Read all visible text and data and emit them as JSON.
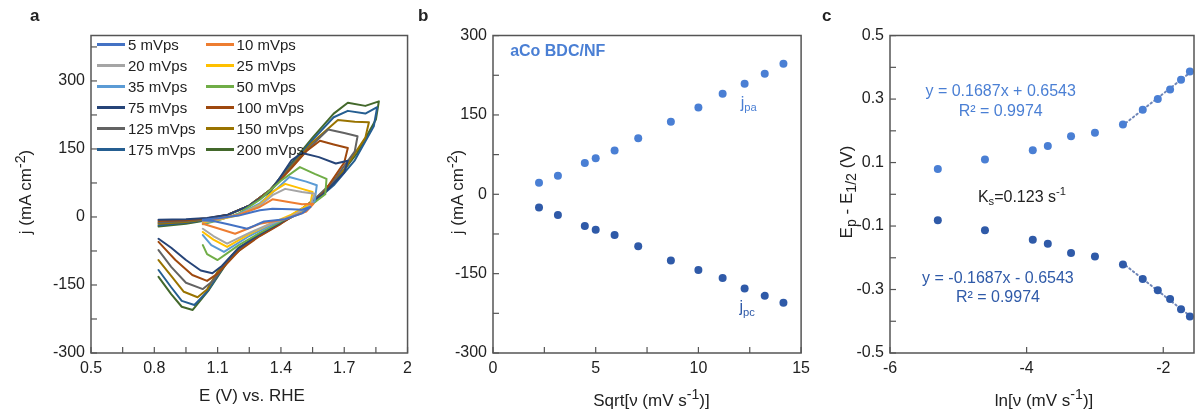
{
  "chart_data": [
    {
      "type": "line",
      "title": "a",
      "xlabel": "E (V) vs. RHE",
      "ylabel": "j (mA cm$^{-2}$)",
      "xlim": [
        0.5,
        2
      ],
      "ylim": [
        -300,
        400
      ],
      "xticks": [
        0.5,
        {
          "value": 0.65,
          "label": null
        },
        0.8,
        {
          "value": 0.95,
          "label": null
        },
        1.1,
        {
          "value": 1.25,
          "label": null
        },
        1.4,
        {
          "value": 1.55,
          "label": null
        },
        1.7,
        {
          "value": 1.85,
          "label": null
        },
        2
      ],
      "yticks": [
        -300,
        {
          "value": -225,
          "label": null
        },
        -150,
        {
          "value": -75,
          "label": null
        },
        0,
        {
          "value": 75,
          "label": null
        },
        150,
        {
          "value": 225,
          "label": null
        },
        300,
        {
          "value": 375,
          "label": null
        }
      ],
      "grid": false,
      "legend": "top left",
      "marker": "none",
      "line_style": "solid",
      "series": [
        {
          "name": "5 mVps",
          "color": "#4472c4",
          "x": [
            1.03,
            1.1,
            1.2,
            1.3,
            1.36,
            1.45,
            1.5,
            1.54,
            1.5,
            1.42,
            1.32,
            1.24,
            1.15,
            1.08,
            1.03
          ],
          "values": [
            -6,
            -3,
            3,
            15,
            18,
            17,
            16,
            22,
            8,
            -5,
            -10,
            -26,
            -16,
            -9,
            -7
          ]
        },
        {
          "name": "10 mVps",
          "color": "#ed7d31",
          "x": [
            1.03,
            1.1,
            1.2,
            1.3,
            1.36,
            1.45,
            1.5,
            1.554,
            1.52,
            1.42,
            1.3,
            1.183,
            1.1,
            1.03
          ],
          "values": [
            -8,
            -4,
            5,
            22,
            39,
            32,
            28,
            29,
            12,
            -5,
            -15,
            -37,
            -25,
            -15
          ]
        },
        {
          "name": "20 mVps",
          "color": "#a5a5a5",
          "x": [
            1.03,
            1.1,
            1.2,
            1.3,
            1.36,
            1.42,
            1.5,
            1.56,
            1.54,
            1.45,
            1.35,
            1.25,
            1.145,
            1.08,
            1.03
          ],
          "values": [
            -10,
            -5,
            5,
            25,
            48,
            62,
            55,
            51,
            25,
            2,
            -15,
            -35,
            -59,
            -42,
            -26
          ]
        },
        {
          "name": "25 mVps",
          "color": "#ffc000",
          "x": [
            1.03,
            1.1,
            1.2,
            1.3,
            1.36,
            1.42,
            1.5,
            1.55,
            1.54,
            1.45,
            1.35,
            1.25,
            1.145,
            1.08,
            1.03
          ],
          "values": [
            -12,
            -6,
            4,
            27,
            55,
            73,
            62,
            55,
            30,
            5,
            -15,
            -38,
            -66,
            -50,
            -33
          ]
        },
        {
          "name": "35 mVps",
          "color": "#5b9bd5",
          "x": [
            1.03,
            1.1,
            1.2,
            1.3,
            1.38,
            1.44,
            1.52,
            1.57,
            1.56,
            1.47,
            1.37,
            1.25,
            1.13,
            1.07,
            1.03
          ],
          "values": [
            -14,
            -7,
            6,
            30,
            62,
            88,
            78,
            70,
            35,
            8,
            -14,
            -42,
            -77,
            -62,
            -40
          ]
        },
        {
          "name": "50 mVps",
          "color": "#70ad47",
          "x": [
            1.03,
            1.1,
            1.2,
            1.3,
            1.4,
            1.49,
            1.56,
            1.616,
            1.61,
            1.52,
            1.42,
            1.3,
            1.2,
            1.1,
            1.05,
            1.03
          ],
          "values": [
            -16,
            -8,
            8,
            38,
            80,
            110,
            95,
            84,
            50,
            18,
            -5,
            -35,
            -62,
            -95,
            -82,
            -62
          ]
        },
        {
          "name": "75 mVps",
          "color": "#264478",
          "x": [
            0.82,
            0.95,
            1.05,
            1.15,
            1.25,
            1.35,
            1.45,
            1.5,
            1.58,
            1.66,
            1.717,
            1.7,
            1.6,
            1.5,
            1.4,
            1.3,
            1.2,
            1.12,
            1.075,
            1.02,
            0.95,
            0.88,
            0.82
          ],
          "values": [
            -6,
            -5,
            -2,
            5,
            25,
            55,
            125,
            141,
            132,
            118,
            124,
            98,
            50,
            18,
            -12,
            -38,
            -68,
            -108,
            -124,
            -118,
            -95,
            -68,
            -48
          ]
        },
        {
          "name": "100 mVps",
          "color": "#9e480e",
          "x": [
            0.82,
            0.95,
            1.05,
            1.15,
            1.25,
            1.35,
            1.45,
            1.52,
            1.585,
            1.65,
            1.717,
            1.7,
            1.6,
            1.5,
            1.4,
            1.3,
            1.2,
            1.1,
            1.05,
            0.98,
            0.9,
            0.82
          ],
          "values": [
            -9,
            -7,
            -3,
            5,
            25,
            58,
            108,
            145,
            168,
            160,
            152,
            120,
            52,
            15,
            -15,
            -42,
            -75,
            -125,
            -141,
            -128,
            -95,
            -55
          ]
        },
        {
          "name": "125 mVps",
          "color": "#636363",
          "x": [
            0.82,
            0.95,
            1.05,
            1.15,
            1.25,
            1.35,
            1.45,
            1.55,
            1.624,
            1.7,
            1.763,
            1.75,
            1.65,
            1.55,
            1.45,
            1.35,
            1.25,
            1.15,
            1.08,
            1.03,
            0.95,
            0.88,
            0.82
          ],
          "values": [
            -12,
            -9,
            -4,
            5,
            25,
            60,
            110,
            160,
            193,
            185,
            178,
            145,
            80,
            35,
            0,
            -28,
            -55,
            -95,
            -140,
            -159,
            -145,
            -110,
            -73
          ]
        },
        {
          "name": "150 mVps",
          "color": "#997300",
          "x": [
            0.82,
            0.95,
            1.05,
            1.15,
            1.25,
            1.35,
            1.45,
            1.55,
            1.67,
            1.75,
            1.817,
            1.8,
            1.7,
            1.6,
            1.5,
            1.4,
            1.3,
            1.2,
            1.1,
            1.05,
            1.005,
            0.94,
            0.88,
            0.82
          ],
          "values": [
            -15,
            -11,
            -5,
            5,
            25,
            60,
            112,
            165,
            214,
            210,
            209,
            175,
            105,
            55,
            18,
            -10,
            -38,
            -68,
            -120,
            -160,
            -177,
            -165,
            -130,
            -95
          ]
        },
        {
          "name": "175 mVps",
          "color": "#255e91",
          "x": [
            0.82,
            0.95,
            1.05,
            1.15,
            1.25,
            1.35,
            1.45,
            1.55,
            1.65,
            1.717,
            1.8,
            1.856,
            1.84,
            1.75,
            1.65,
            1.55,
            1.45,
            1.35,
            1.25,
            1.15,
            1.05,
            0.99,
            0.93,
            0.88,
            0.82
          ],
          "values": [
            -18,
            -13,
            -6,
            5,
            25,
            60,
            115,
            170,
            220,
            234,
            228,
            242,
            200,
            125,
            70,
            30,
            0,
            -25,
            -52,
            -95,
            -165,
            -194,
            -185,
            -155,
            -117
          ]
        },
        {
          "name": "200 mVps",
          "color": "#43682b",
          "x": [
            0.82,
            0.95,
            1.05,
            1.15,
            1.25,
            1.35,
            1.45,
            1.55,
            1.65,
            1.717,
            1.8,
            1.864,
            1.85,
            1.76,
            1.66,
            1.56,
            1.46,
            1.36,
            1.26,
            1.16,
            1.06,
            0.982,
            0.93,
            0.88,
            0.82
          ],
          "values": [
            -21,
            -15,
            -7,
            5,
            25,
            60,
            118,
            175,
            228,
            252,
            245,
            255,
            215,
            140,
            80,
            35,
            2,
            -22,
            -48,
            -90,
            -160,
            -205,
            -198,
            -170,
            -132
          ]
        }
      ]
    },
    {
      "type": "scatter",
      "title": "b",
      "xlabel": "Sqrt[ν (mV s$^{-1}$)]",
      "ylabel": "j (mA cm$^{-2}$)",
      "xlim": [
        0,
        15
      ],
      "ylim": [
        -300,
        300
      ],
      "xticks": [
        0,
        {
          "value": 2.5,
          "label": null
        },
        5,
        {
          "value": 7.5,
          "label": null
        },
        10,
        {
          "value": 12.5,
          "label": null
        },
        15
      ],
      "yticks": [
        -300,
        {
          "value": -225,
          "label": null
        },
        -150,
        {
          "value": -75,
          "label": null
        },
        0,
        {
          "value": 75,
          "label": null
        },
        150,
        {
          "value": 225,
          "label": null
        },
        300
      ],
      "grid": false,
      "marker": "circle",
      "annotations": [
        "aCo BDC/NF",
        "j$_{pa}$",
        "j$_{pc}$"
      ],
      "x": [
        2.24,
        3.16,
        4.47,
        5,
        5.92,
        7.07,
        8.66,
        10,
        11.18,
        12.25,
        13.23,
        14.14
      ],
      "series": [
        {
          "color": "#4a7fd4",
          "values": [
            22,
            35,
            59,
            68,
            83,
            106,
            137,
            164,
            190,
            209,
            228,
            247
          ]
        },
        {
          "color": "#2f5aa8",
          "values": [
            -25,
            -39,
            -60,
            -67,
            -77,
            -98,
            -125,
            -143,
            -158,
            -178,
            -192,
            -205
          ]
        }
      ]
    },
    {
      "type": "scatter",
      "title": "c",
      "xlabel": "ln[ν (mV s$^{-1}$)]",
      "ylabel": "E$_{p}$ - E$_{1/2}$ (V)",
      "xlim": [
        -6,
        -1.55
      ],
      "ylim": [
        -0.5,
        0.5
      ],
      "xticks": [
        -6,
        -4,
        -2
      ],
      "yticks": [
        -0.5,
        {
          "value": -0.4,
          "label": null
        },
        -0.3,
        {
          "value": -0.2,
          "label": null
        },
        -0.1,
        {
          "value": 0,
          "label": null
        },
        0.1,
        {
          "value": 0.2,
          "label": null
        },
        0.3,
        {
          "value": 0.4,
          "label": null
        },
        0.5
      ],
      "grid": false,
      "marker": "circle",
      "annotations": [
        "y = 0.1687x + 0.6543",
        "R² = 0.9974",
        "K$_{s}$=0.123 s$^{-1}$",
        "y = -0.1687x - 0.6543",
        "R² = 0.9974"
      ],
      "x": [
        -5.3,
        -4.61,
        -3.91,
        -3.69,
        -3.35,
        -3.0,
        -2.59,
        -2.3,
        -2.08,
        -1.9,
        -1.74,
        -1.61
      ],
      "series": [
        {
          "color": "#4a7fd4",
          "values": [
            0.08,
            0.11,
            0.139,
            0.152,
            0.183,
            0.194,
            0.22,
            0.266,
            0.3,
            0.33,
            0.361,
            0.387
          ]
        },
        {
          "color": "#2f5aa8",
          "values": [
            -0.082,
            -0.113,
            -0.143,
            -0.156,
            -0.185,
            -0.196,
            -0.221,
            -0.267,
            -0.302,
            -0.33,
            -0.362,
            -0.385
          ]
        },
        {
          "type": "line",
          "color": "#6f86b8",
          "line_style": "dotted",
          "marker": "none",
          "x": [
            -2.6,
            -1.61
          ],
          "values": [
            0.216,
            0.383
          ]
        },
        {
          "type": "line",
          "color": "#6f86b8",
          "line_style": "dotted",
          "marker": "none",
          "x": [
            -2.6,
            -1.61
          ],
          "values": [
            -0.216,
            -0.383
          ]
        }
      ]
    }
  ]
}
